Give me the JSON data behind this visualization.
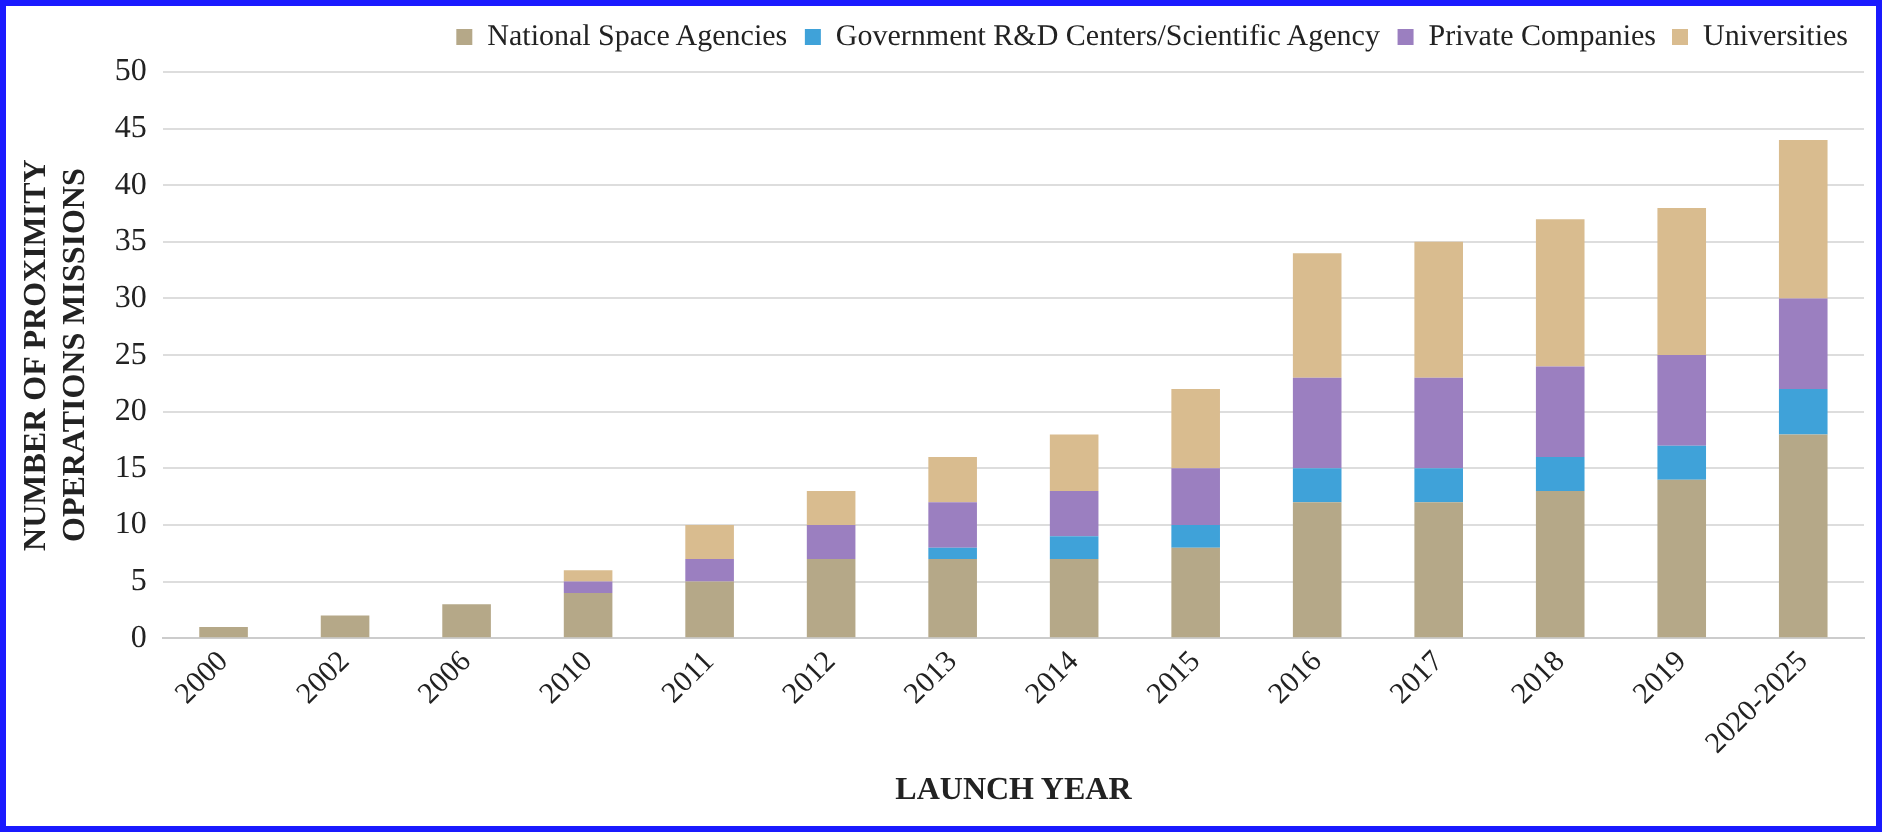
{
  "chart_data": {
    "type": "bar",
    "stacked": true,
    "xlabel": "LAUNCH YEAR",
    "ylabel": "NUMBER OF PROXIMITY\nOPERATIONS MISSIONS",
    "categories": [
      "2000",
      "2002",
      "2006",
      "2010",
      "2011",
      "2012",
      "2013",
      "2014",
      "2015",
      "2016",
      "2017",
      "2018",
      "2019",
      "2020-2025"
    ],
    "series": [
      {
        "name": "National Space Agencies",
        "color": "#b5a888",
        "values": [
          1,
          2,
          3,
          4,
          5,
          7,
          7,
          7,
          8,
          12,
          12,
          13,
          14,
          18
        ]
      },
      {
        "name": "Government R&D Centers/Scientific Agency",
        "color": "#3fa2d9",
        "values": [
          0,
          0,
          0,
          0,
          0,
          0,
          1,
          2,
          2,
          3,
          3,
          3,
          3,
          4
        ]
      },
      {
        "name": "Private Companies",
        "color": "#9b7fc0",
        "values": [
          0,
          0,
          0,
          1,
          2,
          3,
          4,
          4,
          5,
          8,
          8,
          8,
          8,
          8
        ]
      },
      {
        "name": "Universities",
        "color": "#d9bc8f",
        "values": [
          0,
          0,
          0,
          1,
          3,
          3,
          4,
          5,
          7,
          11,
          12,
          13,
          13,
          14
        ]
      }
    ],
    "ylim": [
      0,
      50
    ],
    "yticks": [
      0,
      5,
      10,
      15,
      20,
      25,
      30,
      35,
      40,
      45,
      50
    ],
    "grid": "y",
    "legend": "top"
  }
}
